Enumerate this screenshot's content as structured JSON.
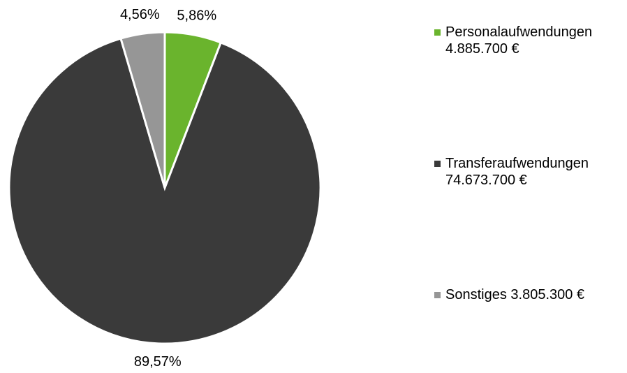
{
  "chart_data": {
    "type": "pie",
    "series": [
      {
        "name": "Personalaufwendungen 4.885.700 €",
        "color": "#6ab42d",
        "values": [
          5.86
        ],
        "value_labels": [
          "5,86%"
        ]
      },
      {
        "name": "Transferaufwendungen 74.673.700 €",
        "color": "#3a3a3a",
        "values": [
          89.57
        ],
        "value_labels": [
          "89,57%"
        ]
      },
      {
        "name": "Sonstiges 3.805.300 €",
        "color": "#969696",
        "values": [
          4.56
        ],
        "value_labels": [
          "4,56%"
        ]
      }
    ],
    "legend": "right"
  }
}
